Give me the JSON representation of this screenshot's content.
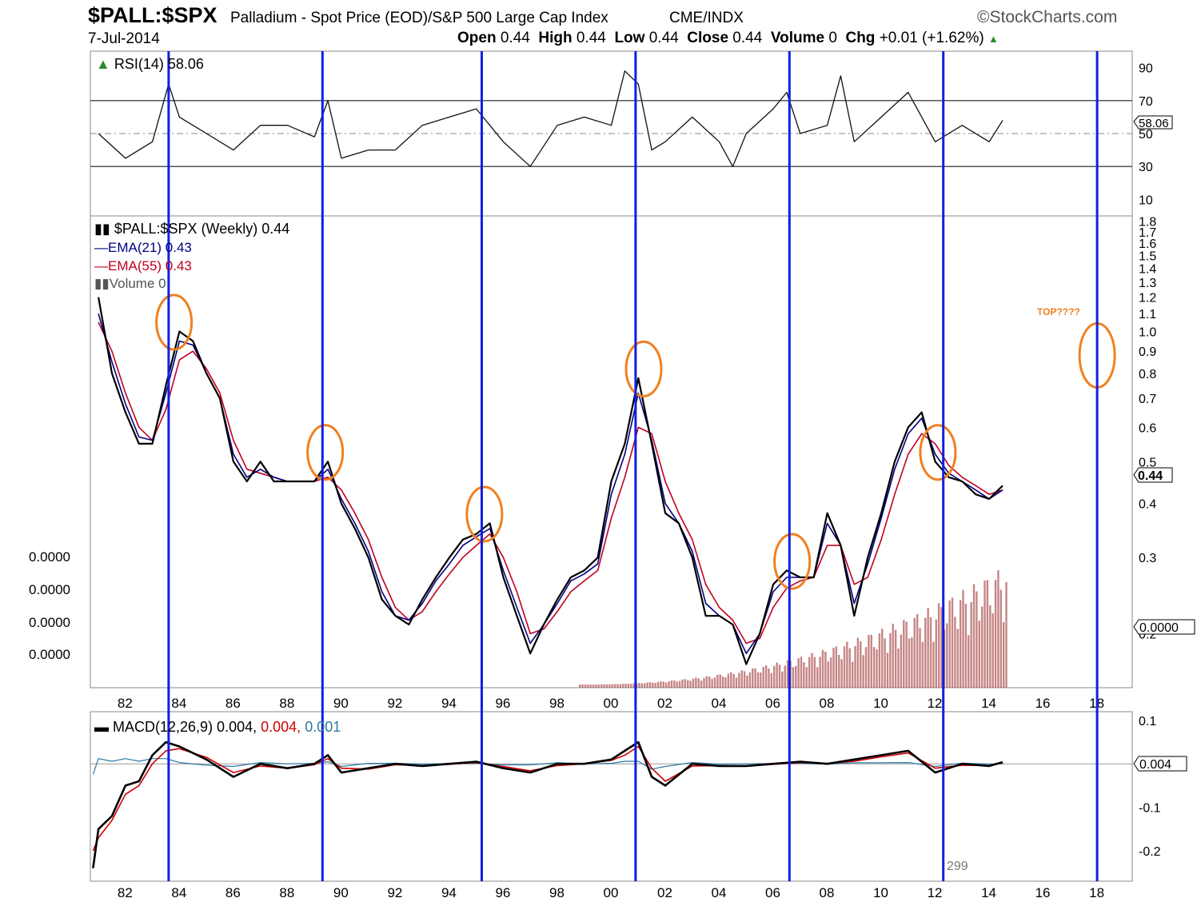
{
  "header": {
    "symbol": "$PALL:$SPX",
    "name": "Palladium - Spot Price (EOD)/S&P 500 Large Cap Index",
    "exchange": "CME/INDX",
    "brand": "©StockCharts.com",
    "date": "7-Jul-2014",
    "open_label": "Open",
    "open": "0.44",
    "high_label": "High",
    "high": "0.44",
    "low_label": "Low",
    "low": "0.44",
    "close_label": "Close",
    "close": "0.44",
    "volume_label": "Volume",
    "volume": "0",
    "chg_label": "Chg",
    "chg": "+0.01 (+1.62%)",
    "up_arrow": "▲"
  },
  "chart_data": [
    {
      "type": "line",
      "panel": "rsi",
      "legend": "RSI(14) 58.06",
      "current_value_label": "58.06",
      "y_ticks": [
        "90",
        "70",
        "50",
        "30",
        "10"
      ],
      "y_tick_values": [
        90,
        70,
        50,
        30,
        10
      ],
      "ylim": [
        0,
        100
      ],
      "reference_lines": [
        70,
        50,
        30
      ],
      "x": [
        1981,
        1982,
        1983,
        1983.6,
        1984,
        1985,
        1986,
        1987,
        1988,
        1989,
        1989.5,
        1990,
        1991,
        1992,
        1993,
        1994,
        1995,
        1995.5,
        1996,
        1997,
        1998,
        1999,
        2000,
        2000.5,
        2001,
        2001.5,
        2002,
        2003,
        2004,
        2004.5,
        2005,
        2006,
        2006.5,
        2007,
        2008,
        2008.5,
        2009,
        2010,
        2011,
        2012,
        2013,
        2014,
        2014.5
      ],
      "values": [
        50,
        35,
        45,
        80,
        60,
        50,
        40,
        55,
        55,
        48,
        70,
        35,
        40,
        40,
        55,
        60,
        65,
        55,
        45,
        30,
        55,
        60,
        55,
        88,
        80,
        40,
        45,
        60,
        45,
        30,
        50,
        65,
        75,
        50,
        55,
        85,
        45,
        60,
        75,
        45,
        55,
        45,
        58
      ]
    },
    {
      "type": "line",
      "panel": "price",
      "legend": "$PALL:$SPX (Weekly) 0.44",
      "scale": "log",
      "ylim": [
        0.15,
        1.85
      ],
      "y_ticks": [
        "1.8",
        "1.7",
        "1.6",
        "1.5",
        "1.4",
        "1.3",
        "1.2",
        "1.1",
        "1.0",
        "0.9",
        "0.8",
        "0.7",
        "0.6",
        "0.5",
        "0.4",
        "0.3",
        "0.2"
      ],
      "y_tick_values": [
        1.8,
        1.7,
        1.6,
        1.5,
        1.4,
        1.3,
        1.2,
        1.1,
        1.0,
        0.9,
        0.8,
        0.7,
        0.6,
        0.5,
        0.4,
        0.3,
        0.2
      ],
      "current_value_label": "0.44",
      "volume_axis_label": "0.0000",
      "volume_ticks": [
        "0.0000",
        "0.0000",
        "0.0000",
        "0.0000"
      ],
      "x_ticks": [
        "82",
        "84",
        "86",
        "88",
        "90",
        "92",
        "94",
        "96",
        "98",
        "00",
        "02",
        "04",
        "06",
        "08",
        "10",
        "12",
        "14",
        "16",
        "18"
      ],
      "x_tick_values": [
        1982,
        1984,
        1986,
        1988,
        1990,
        1992,
        1994,
        1996,
        1998,
        2000,
        2002,
        2004,
        2006,
        2008,
        2010,
        2012,
        2014,
        2016,
        2018
      ],
      "xlim": [
        1980.7,
        2019.3
      ],
      "x": [
        1981,
        1981.5,
        1982,
        1982.5,
        1983,
        1983.5,
        1984,
        1984.5,
        1985,
        1985.5,
        1986,
        1986.5,
        1987,
        1987.5,
        1988,
        1988.5,
        1989,
        1989.5,
        1990,
        1990.5,
        1991,
        1991.5,
        1992,
        1992.5,
        1993,
        1993.5,
        1994,
        1994.5,
        1995,
        1995.5,
        1996,
        1996.5,
        1997,
        1997.5,
        1998,
        1998.5,
        1999,
        1999.5,
        2000,
        2000.5,
        2001,
        2001.5,
        2002,
        2002.5,
        2003,
        2003.5,
        2004,
        2004.5,
        2005,
        2005.5,
        2006,
        2006.5,
        2007,
        2007.5,
        2008,
        2008.5,
        2009,
        2009.5,
        2010,
        2010.5,
        2011,
        2011.5,
        2012,
        2012.5,
        2013,
        2013.5,
        2014,
        2014.5
      ],
      "values": [
        1.2,
        0.8,
        0.65,
        0.55,
        0.55,
        0.75,
        1.0,
        0.95,
        0.8,
        0.7,
        0.5,
        0.45,
        0.5,
        0.45,
        0.45,
        0.45,
        0.45,
        0.5,
        0.4,
        0.35,
        0.3,
        0.24,
        0.22,
        0.21,
        0.24,
        0.27,
        0.3,
        0.33,
        0.34,
        0.36,
        0.27,
        0.22,
        0.18,
        0.21,
        0.24,
        0.27,
        0.28,
        0.3,
        0.45,
        0.55,
        0.78,
        0.55,
        0.38,
        0.36,
        0.3,
        0.22,
        0.22,
        0.21,
        0.17,
        0.2,
        0.26,
        0.28,
        0.27,
        0.27,
        0.38,
        0.32,
        0.22,
        0.3,
        0.38,
        0.5,
        0.6,
        0.65,
        0.5,
        0.46,
        0.45,
        0.42,
        0.41,
        0.44
      ],
      "series": [
        {
          "name": "EMA(21) 0.43",
          "color": "#000080",
          "values": [
            1.1,
            0.85,
            0.68,
            0.57,
            0.56,
            0.72,
            0.95,
            0.93,
            0.8,
            0.7,
            0.52,
            0.46,
            0.48,
            0.46,
            0.45,
            0.45,
            0.45,
            0.48,
            0.41,
            0.36,
            0.31,
            0.25,
            0.22,
            0.215,
            0.235,
            0.265,
            0.29,
            0.32,
            0.335,
            0.35,
            0.28,
            0.23,
            0.19,
            0.21,
            0.235,
            0.265,
            0.275,
            0.29,
            0.42,
            0.52,
            0.72,
            0.56,
            0.4,
            0.36,
            0.31,
            0.235,
            0.22,
            0.21,
            0.18,
            0.2,
            0.25,
            0.27,
            0.27,
            0.27,
            0.36,
            0.32,
            0.235,
            0.29,
            0.37,
            0.48,
            0.58,
            0.63,
            0.52,
            0.47,
            0.45,
            0.43,
            0.41,
            0.43
          ]
        },
        {
          "name": "EMA(55) 0.43",
          "color": "#c00020",
          "values": [
            1.05,
            0.9,
            0.72,
            0.6,
            0.56,
            0.66,
            0.86,
            0.9,
            0.82,
            0.72,
            0.56,
            0.48,
            0.47,
            0.46,
            0.45,
            0.45,
            0.45,
            0.46,
            0.43,
            0.38,
            0.33,
            0.27,
            0.23,
            0.215,
            0.225,
            0.25,
            0.275,
            0.3,
            0.32,
            0.34,
            0.3,
            0.25,
            0.2,
            0.205,
            0.225,
            0.25,
            0.265,
            0.28,
            0.37,
            0.46,
            0.6,
            0.58,
            0.45,
            0.38,
            0.33,
            0.26,
            0.23,
            0.215,
            0.19,
            0.195,
            0.23,
            0.255,
            0.265,
            0.27,
            0.32,
            0.32,
            0.26,
            0.27,
            0.33,
            0.42,
            0.52,
            0.58,
            0.55,
            0.49,
            0.46,
            0.44,
            0.42,
            0.43
          ]
        }
      ],
      "volume_legend": "Volume 0",
      "volume_color": "#b35c5c",
      "annotations": [
        {
          "text": "TOP????",
          "color": "#f08020",
          "x": 2017.5,
          "y": 1.12
        }
      ],
      "circled_peaks": [
        1983.8,
        1989.4,
        1995.3,
        2001.2,
        2006.7,
        2012.1,
        2018.0
      ],
      "vertical_markers": [
        1983.6,
        1989.3,
        1995.2,
        2000.9,
        2006.6,
        2012.3,
        2018.0
      ],
      "marker_color": "#1020e0",
      "circle_color": "#f08020"
    },
    {
      "type": "line",
      "panel": "macd",
      "legend_main": "MACD(12,26,9) 0.004,",
      "legend_signal": "0.004,",
      "legend_hist": "0.001",
      "current_value_label": "0.004",
      "y_ticks": [
        "0.1",
        "-0.1",
        "-0.2"
      ],
      "y_tick_values": [
        0.1,
        -0.1,
        -0.2
      ],
      "ylim": [
        -0.27,
        0.12
      ],
      "footer_number": "299",
      "x": [
        1980.8,
        1981,
        1981.5,
        1982,
        1982.5,
        1983,
        1983.5,
        1984,
        1985,
        1986,
        1987,
        1988,
        1989,
        1989.5,
        1990,
        1991,
        1992,
        1993,
        1994,
        1995,
        1996,
        1997,
        1998,
        1999,
        2000,
        2000.5,
        2001,
        2001.5,
        2002,
        2003,
        2004,
        2005,
        2006,
        2007,
        2008,
        2009,
        2010,
        2011,
        2012,
        2013,
        2014,
        2014.5
      ],
      "values": [
        -0.24,
        -0.15,
        -0.12,
        -0.05,
        -0.04,
        0.02,
        0.05,
        0.04,
        0.01,
        -0.03,
        0.0,
        -0.01,
        0.0,
        0.02,
        -0.02,
        -0.01,
        0.0,
        -0.005,
        0.0,
        0.005,
        -0.01,
        -0.02,
        0.0,
        0.0,
        0.01,
        0.03,
        0.05,
        -0.03,
        -0.05,
        0.0,
        -0.005,
        -0.005,
        0.0,
        0.005,
        0.0,
        0.01,
        0.02,
        0.03,
        -0.02,
        0.0,
        -0.005,
        0.004
      ],
      "signal": [
        -0.2,
        -0.17,
        -0.13,
        -0.07,
        -0.05,
        0.0,
        0.03,
        0.035,
        0.015,
        -0.02,
        -0.005,
        -0.01,
        -0.002,
        0.012,
        -0.01,
        -0.012,
        -0.002,
        -0.004,
        -0.001,
        0.003,
        -0.006,
        -0.016,
        -0.004,
        0.0,
        0.008,
        0.02,
        0.04,
        -0.01,
        -0.04,
        -0.005,
        -0.004,
        -0.005,
        -0.001,
        0.003,
        0.001,
        0.006,
        0.016,
        0.025,
        -0.01,
        -0.003,
        -0.004,
        0.004
      ],
      "hist_color": "#2a7aa0",
      "x_ticks": [
        "82",
        "84",
        "86",
        "88",
        "90",
        "92",
        "94",
        "96",
        "98",
        "00",
        "02",
        "04",
        "06",
        "08",
        "10",
        "12",
        "14",
        "16",
        "18"
      ],
      "x_tick_values": [
        1982,
        1984,
        1986,
        1988,
        1990,
        1992,
        1994,
        1996,
        1998,
        2000,
        2002,
        2004,
        2006,
        2008,
        2010,
        2012,
        2014,
        2016,
        2018
      ]
    }
  ]
}
